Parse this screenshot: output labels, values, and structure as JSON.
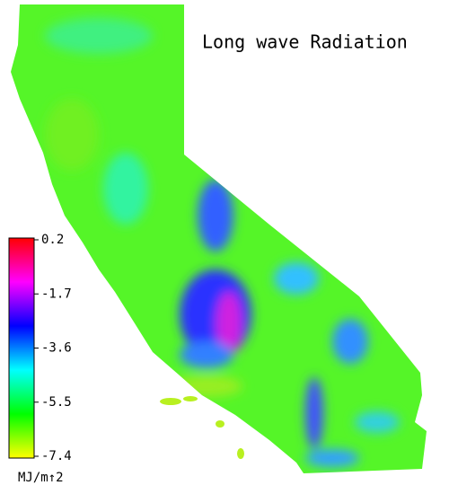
{
  "title": "Long wave Radiation",
  "colorbar": {
    "lim": [
      -7.4,
      0.2
    ],
    "ticks": [
      0.2,
      -1.7,
      -3.6,
      -5.5,
      -7.4
    ],
    "unit": "MJ/m↑2",
    "colors": [
      "#ffff00",
      "#00ff00",
      "#00ffff",
      "#0000ff",
      "#ff00ff",
      "#ff0000"
    ]
  }
}
